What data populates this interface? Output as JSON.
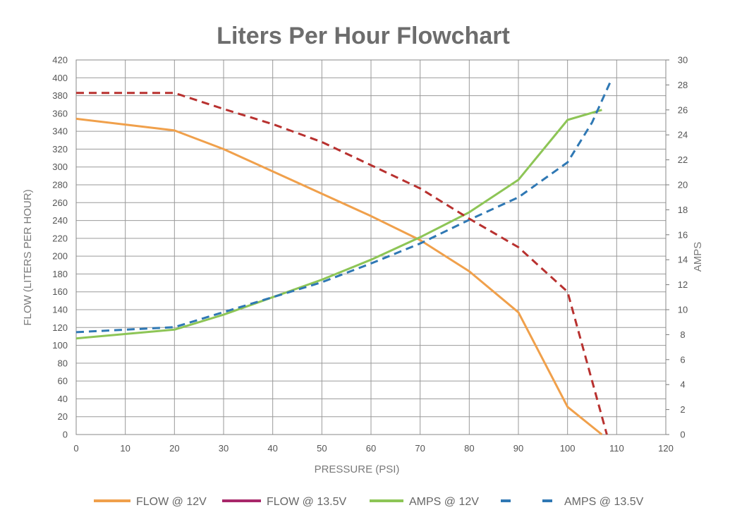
{
  "chart_data": {
    "type": "line",
    "title": "Liters Per Hour Flowchart",
    "xlabel": "PRESSURE (PSI)",
    "ylabel_left": "FLOW (LITERS PER HOUR)",
    "ylabel_right": "AMPS",
    "xlim": [
      0,
      120
    ],
    "ylim_left": [
      0,
      420
    ],
    "ylim_right": [
      0,
      30
    ],
    "x_ticks": [
      "0",
      "10",
      "20",
      "30",
      "40",
      "50",
      "60",
      "70",
      "80",
      "90",
      "100",
      "110",
      "120"
    ],
    "y_left_ticks": [
      "0",
      "20",
      "40",
      "60",
      "80",
      "100",
      "120",
      "140",
      "160",
      "180",
      "200",
      "220",
      "240",
      "260",
      "280",
      "300",
      "320",
      "340",
      "360",
      "380",
      "400",
      "420"
    ],
    "y_right_ticks": [
      "0",
      "2",
      "4",
      "6",
      "8",
      "10",
      "12",
      "14",
      "16",
      "18",
      "20",
      "22",
      "24",
      "26",
      "28",
      "30"
    ],
    "grid": true,
    "legend_position": "bottom",
    "series": [
      {
        "name": "FLOW @ 12V",
        "axis": "left",
        "color": "#f0a04b",
        "style": "solid",
        "legend_color": "#f0a04b",
        "legend_style": "solid",
        "points": [
          [
            0,
            354
          ],
          [
            20,
            341
          ],
          [
            30,
            320
          ],
          [
            40,
            295
          ],
          [
            50,
            270
          ],
          [
            60,
            245
          ],
          [
            70,
            218
          ],
          [
            80,
            183
          ],
          [
            90,
            137
          ],
          [
            100,
            31
          ],
          [
            107,
            0
          ]
        ]
      },
      {
        "name": "FLOW @ 13.5V",
        "axis": "left",
        "color": "#b8312f",
        "style": "dashed",
        "legend_color": "#a8286a",
        "legend_style": "solid",
        "points": [
          [
            0,
            383
          ],
          [
            20,
            383
          ],
          [
            30,
            365
          ],
          [
            40,
            348
          ],
          [
            50,
            328
          ],
          [
            60,
            302
          ],
          [
            70,
            276
          ],
          [
            80,
            242
          ],
          [
            90,
            210
          ],
          [
            100,
            160
          ],
          [
            108,
            0
          ]
        ]
      },
      {
        "name": "AMPS @ 12V",
        "axis": "right",
        "color": "#8dc556",
        "style": "solid",
        "legend_color": "#8dc556",
        "legend_style": "solid",
        "points": [
          [
            0,
            7.7
          ],
          [
            20,
            8.4
          ],
          [
            30,
            9.6
          ],
          [
            40,
            11.0
          ],
          [
            50,
            12.4
          ],
          [
            60,
            14.0
          ],
          [
            70,
            15.8
          ],
          [
            80,
            17.8
          ],
          [
            90,
            20.4
          ],
          [
            100,
            25.2
          ],
          [
            107,
            26.0
          ]
        ]
      },
      {
        "name": "AMPS @ 13.5V",
        "axis": "right",
        "color": "#2f78b4",
        "style": "dashed",
        "legend_color": "#2f78b4",
        "legend_style": "dashed",
        "points": [
          [
            0,
            8.2
          ],
          [
            20,
            8.6
          ],
          [
            30,
            9.8
          ],
          [
            40,
            11.0
          ],
          [
            50,
            12.2
          ],
          [
            60,
            13.7
          ],
          [
            70,
            15.3
          ],
          [
            80,
            17.2
          ],
          [
            90,
            19.0
          ],
          [
            100,
            21.8
          ],
          [
            105,
            25.0
          ],
          [
            109,
            28.5
          ]
        ]
      }
    ]
  }
}
